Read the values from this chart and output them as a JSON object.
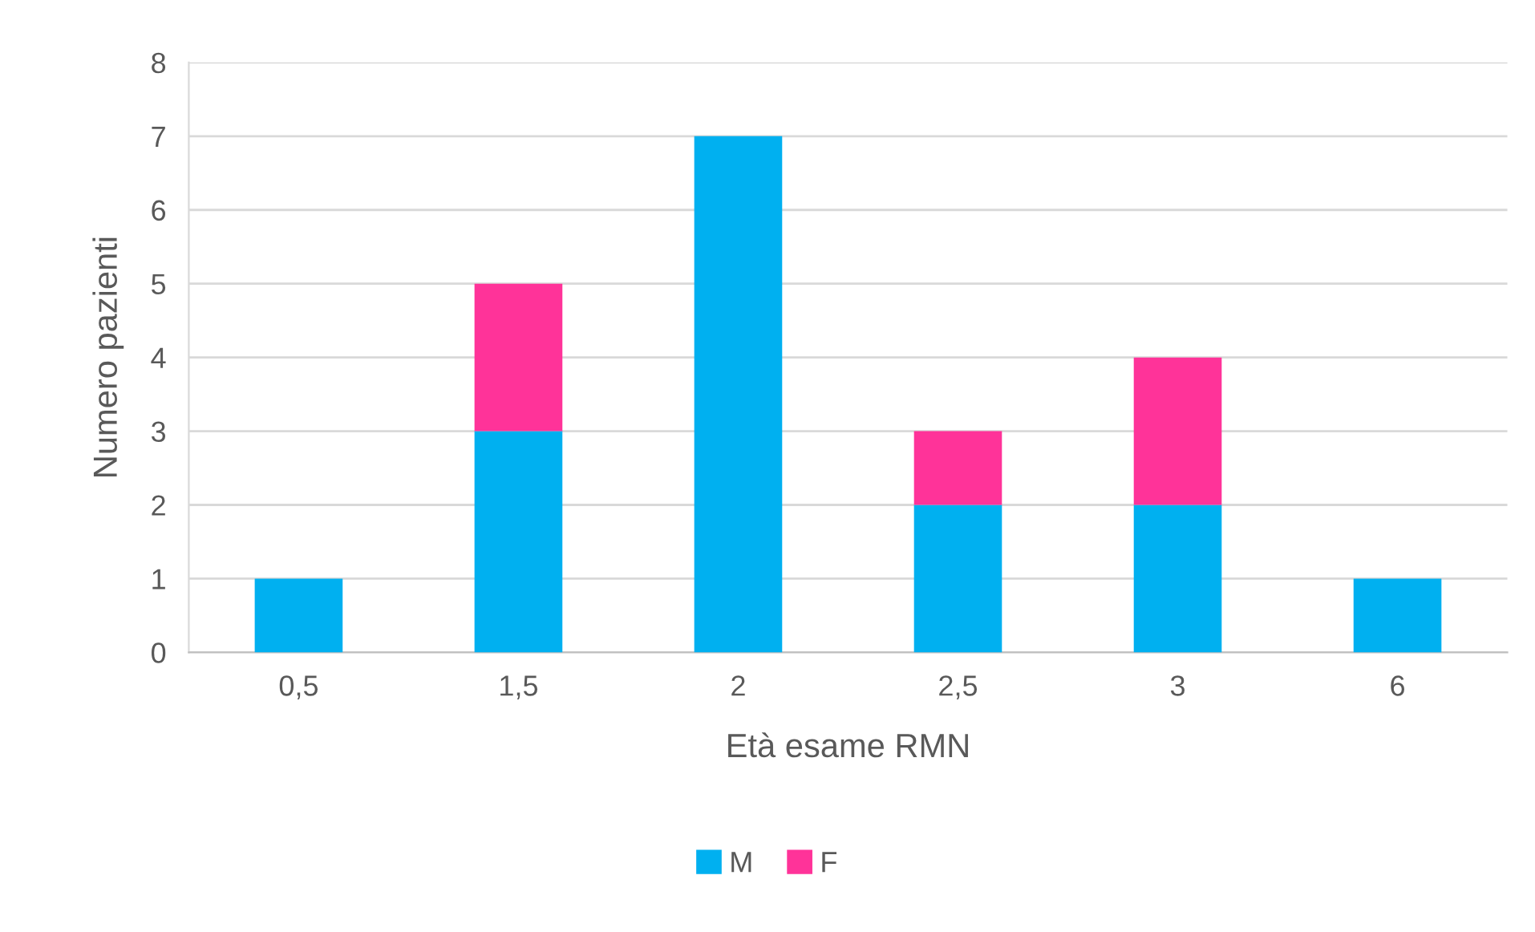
{
  "chart_data": {
    "type": "bar",
    "stacked": true,
    "xlabel": "Età esame RMN",
    "ylabel": "Numero pazienti",
    "categories": [
      "0,5",
      "1,5",
      "2",
      "2,5",
      "3",
      "6"
    ],
    "series": [
      {
        "name": "M",
        "color": "#00b0f0",
        "values": [
          1,
          3,
          7,
          2,
          2,
          1
        ]
      },
      {
        "name": "F",
        "color": "#ff3399",
        "values": [
          0,
          2,
          0,
          1,
          2,
          0
        ]
      }
    ],
    "ylim": [
      0,
      8
    ],
    "yticks": [
      0,
      1,
      2,
      3,
      4,
      5,
      6,
      7,
      8
    ],
    "grid": "y",
    "legend": "bottom"
  }
}
